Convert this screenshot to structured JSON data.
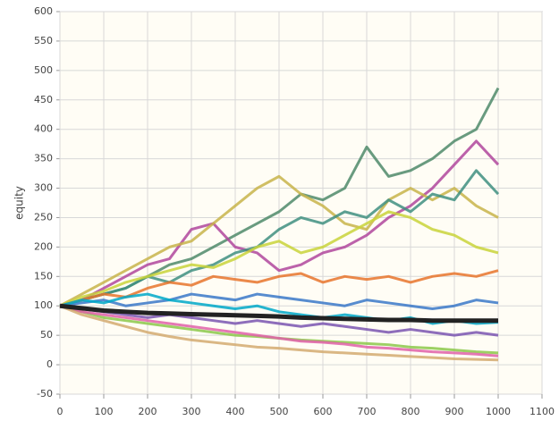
{
  "chart_data": {
    "type": "line",
    "y_label": "equity",
    "x": [
      0,
      50,
      100,
      150,
      200,
      250,
      300,
      350,
      400,
      450,
      500,
      550,
      600,
      650,
      700,
      750,
      800,
      850,
      900,
      950,
      1000
    ],
    "series": [
      {
        "color": "#4f8a6a",
        "values": [
          100,
          110,
          120,
          130,
          150,
          170,
          180,
          200,
          220,
          240,
          260,
          290,
          280,
          300,
          370,
          320,
          330,
          350,
          380,
          400,
          470
        ]
      },
      {
        "color": "#b0479c",
        "values": [
          100,
          110,
          130,
          150,
          170,
          180,
          230,
          240,
          200,
          190,
          160,
          170,
          190,
          200,
          220,
          250,
          270,
          300,
          340,
          380,
          340
        ]
      },
      {
        "color": "#c8b44a",
        "values": [
          100,
          120,
          140,
          160,
          180,
          200,
          210,
          240,
          270,
          300,
          320,
          290,
          270,
          240,
          230,
          280,
          300,
          280,
          300,
          270,
          250
        ]
      },
      {
        "color": "#3f8f80",
        "values": [
          100,
          110,
          120,
          130,
          150,
          140,
          160,
          170,
          190,
          200,
          230,
          250,
          240,
          260,
          250,
          280,
          260,
          290,
          280,
          330,
          290
        ]
      },
      {
        "color": "#c9d43a",
        "values": [
          100,
          115,
          125,
          140,
          150,
          160,
          170,
          165,
          180,
          200,
          210,
          190,
          200,
          220,
          240,
          260,
          250,
          230,
          220,
          200,
          190
        ]
      },
      {
        "color": "#e8742c",
        "values": [
          100,
          110,
          120,
          115,
          130,
          140,
          135,
          150,
          145,
          140,
          150,
          155,
          140,
          150,
          145,
          150,
          140,
          150,
          155,
          150,
          160
        ]
      },
      {
        "color": "#3a78c8",
        "values": [
          100,
          105,
          110,
          100,
          105,
          110,
          120,
          115,
          110,
          120,
          115,
          110,
          105,
          100,
          110,
          105,
          100,
          95,
          100,
          110,
          105
        ]
      },
      {
        "color": "#00a8c8",
        "values": [
          100,
          110,
          105,
          115,
          120,
          110,
          105,
          100,
          95,
          100,
          90,
          85,
          80,
          85,
          80,
          75,
          80,
          70,
          75,
          70,
          72
        ]
      },
      {
        "color": "#7a55b0",
        "values": [
          100,
          95,
          90,
          85,
          80,
          85,
          80,
          75,
          70,
          75,
          70,
          65,
          70,
          65,
          60,
          55,
          60,
          55,
          50,
          55,
          50
        ]
      },
      {
        "color": "#8cc84a",
        "values": [
          100,
          90,
          80,
          75,
          70,
          65,
          60,
          55,
          50,
          48,
          45,
          42,
          40,
          38,
          36,
          34,
          30,
          28,
          25,
          22,
          20
        ]
      },
      {
        "color": "#e060a8",
        "values": [
          100,
          90,
          85,
          80,
          75,
          70,
          65,
          60,
          55,
          50,
          45,
          40,
          38,
          35,
          30,
          28,
          25,
          22,
          20,
          18,
          15
        ]
      },
      {
        "color": "#d4aa70",
        "values": [
          100,
          85,
          75,
          65,
          55,
          48,
          42,
          38,
          34,
          30,
          28,
          25,
          22,
          20,
          18,
          16,
          14,
          12,
          10,
          9,
          8
        ]
      },
      {
        "color": "#222222",
        "values": [
          100,
          96,
          92,
          90,
          88,
          87,
          86,
          85,
          84,
          83,
          82,
          80,
          79,
          78,
          77,
          76,
          76,
          75,
          75,
          75,
          75
        ]
      }
    ],
    "xlim": [
      0,
      1100
    ],
    "xticks": [
      0,
      100,
      200,
      300,
      400,
      500,
      600,
      700,
      800,
      900,
      1000,
      1100
    ],
    "ylim": [
      -50,
      600
    ],
    "yticks": [
      -50,
      0,
      50,
      100,
      150,
      200,
      250,
      300,
      350,
      400,
      450,
      500,
      550,
      600
    ],
    "grid": true
  }
}
